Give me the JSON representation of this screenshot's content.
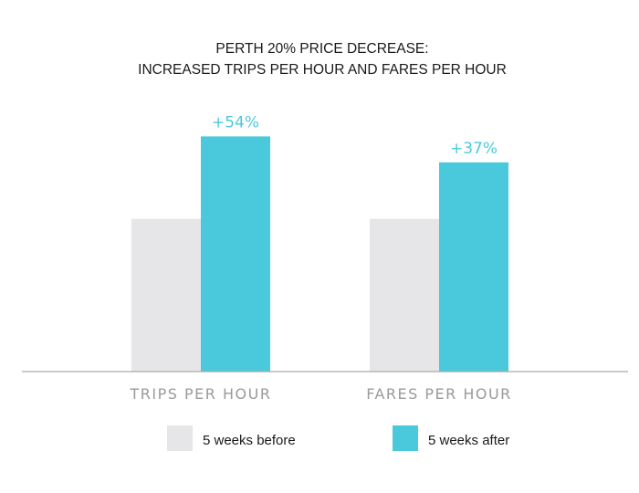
{
  "chart_data": {
    "type": "bar",
    "title": "PERTH 20% PRICE DECREASE:",
    "subtitle": "INCREASED  TRIPS PER HOUR AND FARES PER HOUR",
    "xlabel": "",
    "ylabel": "",
    "categories": [
      "TRIPS PER HOUR",
      "FARES PER HOUR"
    ],
    "series": [
      {
        "name": "5 weeks before",
        "values": [
          100,
          100
        ],
        "color": "#e6e6e9"
      },
      {
        "name": "5 weeks after",
        "values": [
          154,
          137
        ],
        "color": "#4bc9dc"
      }
    ],
    "data_labels": [
      "+54%",
      "+37%"
    ],
    "data_label_color": "#4bc9dc",
    "ylim": [
      0,
      165
    ],
    "grid": false,
    "legend_position": "bottom",
    "axis_color": "#aaaaaa"
  }
}
